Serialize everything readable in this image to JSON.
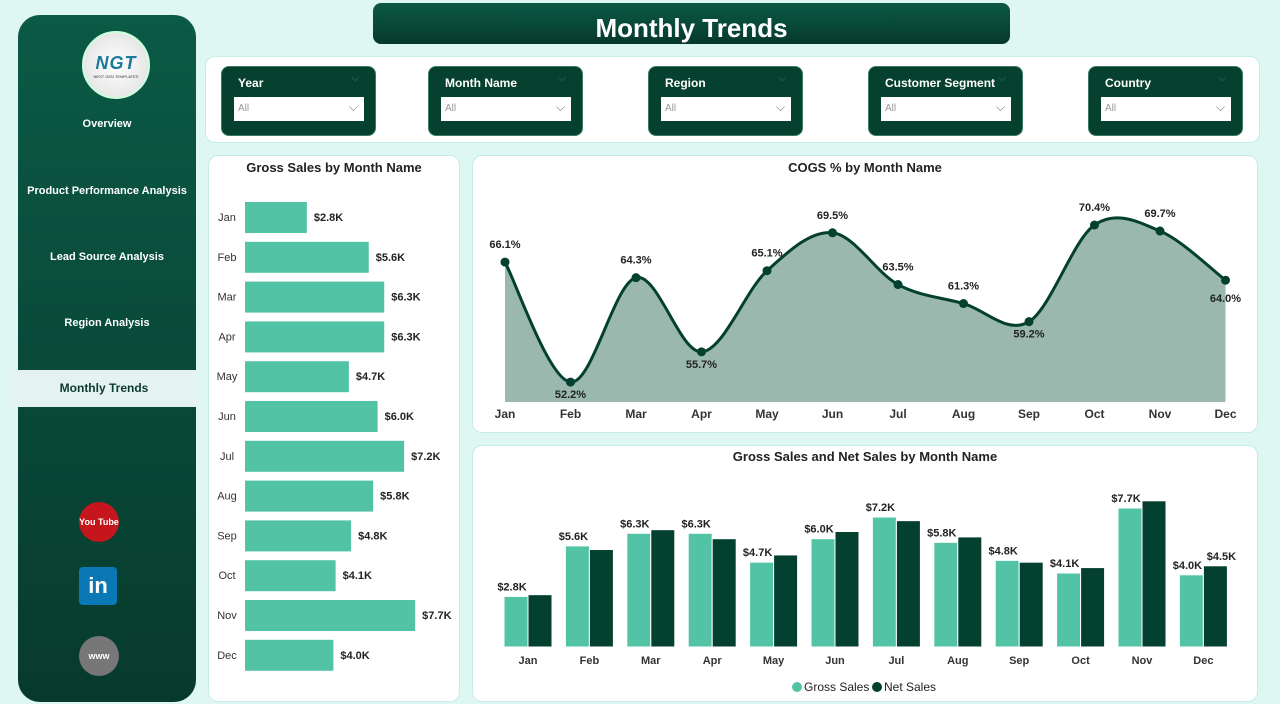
{
  "title": "Monthly Trends",
  "logo": {
    "text": "NGT",
    "subtitle": "NEXT GEN TEMPLATES"
  },
  "sidebar": {
    "items": [
      {
        "label": "Overview"
      },
      {
        "label": "Product Performance Analysis"
      },
      {
        "label": "Lead Source Analysis"
      },
      {
        "label": "Region Analysis"
      },
      {
        "label": "Monthly Trends",
        "active": true
      }
    ],
    "social": [
      {
        "icon": "youtube-icon",
        "label": "You Tube"
      },
      {
        "icon": "linkedin-icon",
        "label": "in"
      },
      {
        "icon": "globe-icon",
        "label": "www"
      }
    ]
  },
  "filters": [
    {
      "label": "Year",
      "value": "All"
    },
    {
      "label": "Month Name",
      "value": "All"
    },
    {
      "label": "Region",
      "value": "All"
    },
    {
      "label": "Customer Segment",
      "value": "All"
    },
    {
      "label": "Country",
      "value": "All"
    }
  ],
  "colors": {
    "primary": "#04402f",
    "accent": "#52c4a5",
    "area": "#9ab8ad",
    "background": "#dff7f3"
  },
  "chart_data": [
    {
      "type": "bar",
      "orientation": "horizontal",
      "title": "Gross Sales by Month Name",
      "categories": [
        "Jan",
        "Feb",
        "Mar",
        "Apr",
        "May",
        "Jun",
        "Jul",
        "Aug",
        "Sep",
        "Oct",
        "Nov",
        "Dec"
      ],
      "values": [
        2.8,
        5.6,
        6.3,
        6.3,
        4.7,
        6.0,
        7.2,
        5.8,
        4.8,
        4.1,
        7.7,
        4.0
      ],
      "labels": [
        "$2.8K",
        "$5.6K",
        "$6.3K",
        "$6.3K",
        "$4.7K",
        "$6.0K",
        "$7.2K",
        "$5.8K",
        "$4.8K",
        "$4.1K",
        "$7.7K",
        "$4.0K"
      ],
      "unit": "$K"
    },
    {
      "type": "area",
      "title": "COGS % by Month Name",
      "categories": [
        "Jan",
        "Feb",
        "Mar",
        "Apr",
        "May",
        "Jun",
        "Jul",
        "Aug",
        "Sep",
        "Oct",
        "Nov",
        "Dec"
      ],
      "values": [
        66.1,
        52.2,
        64.3,
        55.7,
        65.1,
        69.5,
        63.5,
        61.3,
        59.2,
        70.4,
        69.7,
        64.0
      ],
      "labels": [
        "66.1%",
        "52.2%",
        "64.3%",
        "55.7%",
        "65.1%",
        "69.5%",
        "63.5%",
        "61.3%",
        "59.2%",
        "70.4%",
        "69.7%",
        "64.0%"
      ]
    },
    {
      "type": "bar",
      "title": "Gross Sales and Net Sales by Month Name",
      "categories": [
        "Jan",
        "Feb",
        "Mar",
        "Apr",
        "May",
        "Jun",
        "Jul",
        "Aug",
        "Sep",
        "Oct",
        "Nov",
        "Dec"
      ],
      "series": [
        {
          "name": "Gross Sales",
          "values": [
            2.8,
            5.6,
            6.3,
            6.3,
            4.7,
            6.0,
            7.2,
            5.8,
            4.8,
            4.1,
            7.7,
            4.0
          ],
          "labels": [
            "$2.8K",
            "$5.6K",
            "$6.3K",
            "$6.3K",
            "$4.7K",
            "$6.0K",
            "$7.2K",
            "$5.8K",
            "$4.8K",
            "$4.1K",
            "$7.7K",
            "$4.0K"
          ]
        },
        {
          "name": "Net Sales",
          "values": [
            2.9,
            5.4,
            6.5,
            6.0,
            5.1,
            6.4,
            7.0,
            6.1,
            4.7,
            4.4,
            8.1,
            4.5
          ],
          "labels": [
            "",
            "",
            "",
            "",
            "",
            "",
            "",
            "",
            "",
            "",
            "",
            "$4.5K"
          ]
        }
      ],
      "legend": "bottom",
      "unit": "$K"
    }
  ]
}
